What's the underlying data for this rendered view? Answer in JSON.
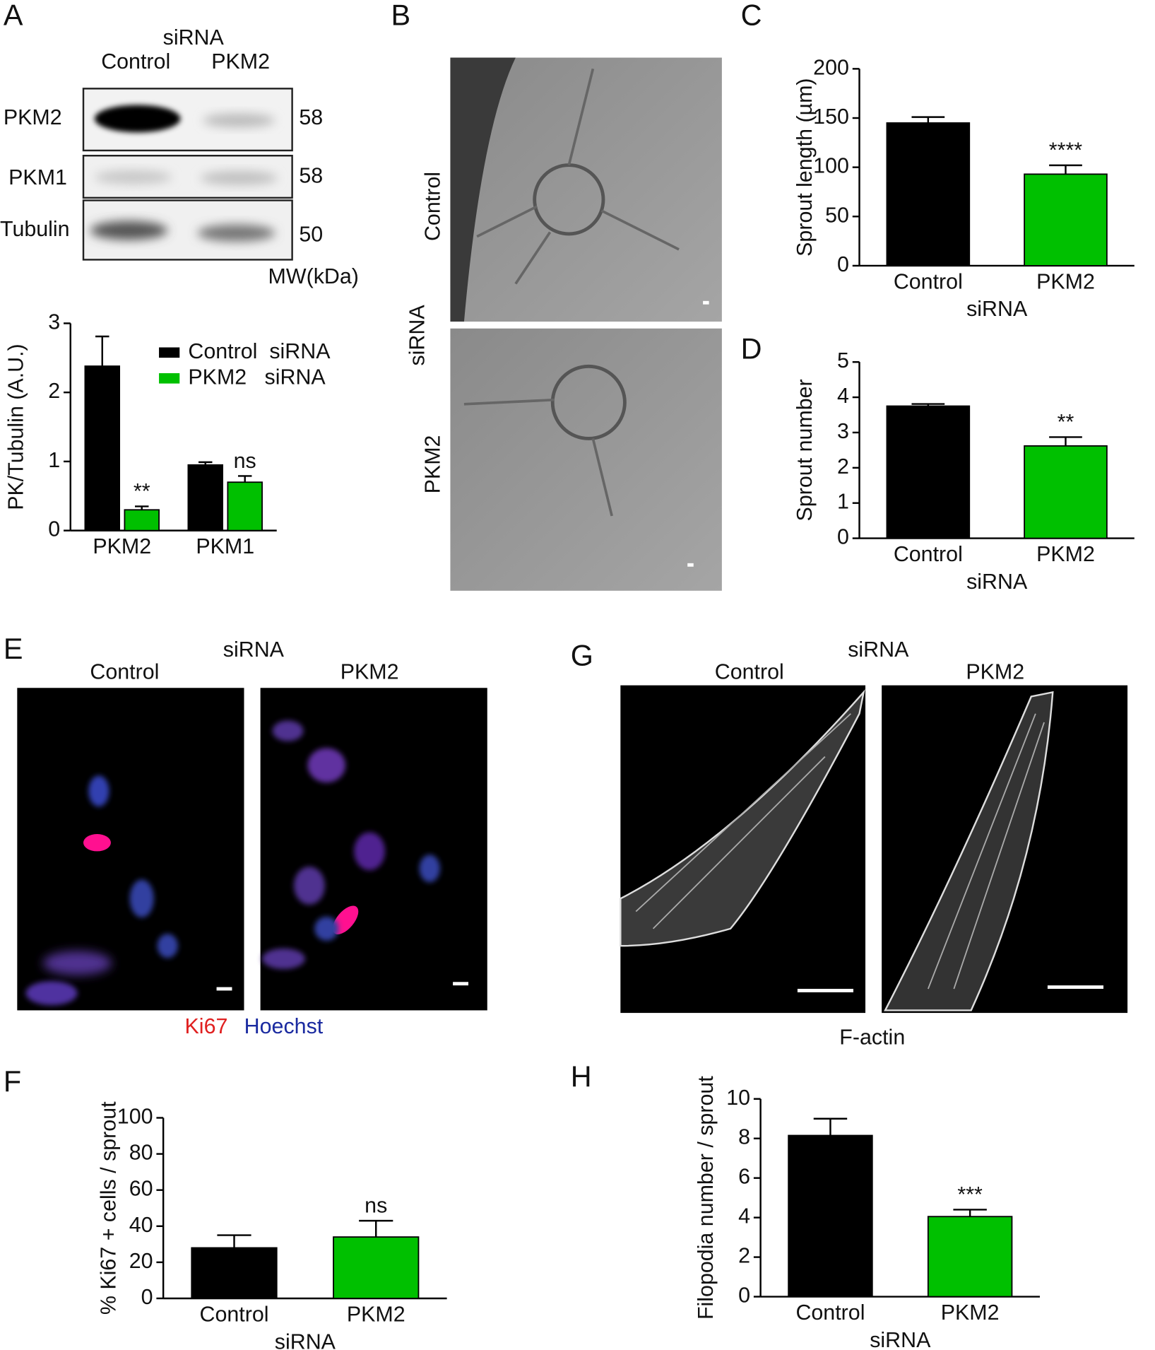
{
  "chart_data": [
    {
      "type": "bar",
      "ylabel": "PK/Tubulin (A.U.)",
      "categories": [
        "PKM2",
        "PKM1"
      ],
      "series": [
        {
          "name": "Control  siRNA",
          "color": "#000000",
          "values": [
            2.38,
            0.95
          ],
          "errors": [
            0.43,
            0.04
          ]
        },
        {
          "name": "PKM2   siRNA",
          "color": "#00c000",
          "values": [
            0.3,
            0.7
          ],
          "errors": [
            0.05,
            0.09
          ],
          "annotations": [
            "**",
            "ns"
          ]
        }
      ],
      "ylim": [
        0,
        3
      ],
      "yticks": [
        0,
        1,
        2,
        3
      ]
    },
    {
      "type": "bar",
      "ylabel": "Sprout length (µm)",
      "xlabel": "siRNA",
      "categories": [
        "Control",
        "PKM2"
      ],
      "values": [
        145,
        93
      ],
      "errors": [
        6,
        9
      ],
      "annotations": [
        null,
        "****"
      ],
      "colors": [
        "#000000",
        "#00c000"
      ],
      "ylim": [
        0,
        200
      ],
      "yticks": [
        0,
        50,
        100,
        150,
        200
      ]
    },
    {
      "type": "bar",
      "ylabel": "Sprout number",
      "xlabel": "siRNA",
      "categories": [
        "Control",
        "PKM2"
      ],
      "values": [
        3.75,
        2.62
      ],
      "errors": [
        0.06,
        0.25
      ],
      "annotations": [
        null,
        "**"
      ],
      "colors": [
        "#000000",
        "#00c000"
      ],
      "ylim": [
        0,
        5
      ],
      "yticks": [
        0,
        1,
        2,
        3,
        4,
        5
      ]
    },
    {
      "type": "bar",
      "ylabel": "% Ki67 + cells / sprout",
      "xlabel": "siRNA",
      "categories": [
        "Control",
        "PKM2"
      ],
      "values": [
        28,
        34
      ],
      "errors": [
        7,
        9
      ],
      "annotations": [
        null,
        "ns"
      ],
      "colors": [
        "#000000",
        "#00c000"
      ],
      "ylim": [
        0,
        100
      ],
      "yticks": [
        0,
        20,
        40,
        60,
        80,
        100
      ]
    },
    {
      "type": "bar",
      "ylabel": "Filopodia number / sprout",
      "xlabel": "siRNA",
      "categories": [
        "Control",
        "PKM2"
      ],
      "values": [
        8.15,
        4.05
      ],
      "errors": [
        0.85,
        0.35
      ],
      "annotations": [
        null,
        "***"
      ],
      "colors": [
        "#000000",
        "#00c000"
      ],
      "ylim": [
        0,
        10
      ],
      "yticks": [
        0,
        2,
        4,
        6,
        8,
        10
      ]
    }
  ],
  "figure": {
    "panel_labels": [
      "A",
      "B",
      "C",
      "D",
      "E",
      "F",
      "G",
      "H"
    ],
    "blot": {
      "header": "siRNA",
      "lanes": [
        "Control",
        "PKM2"
      ],
      "rows": [
        {
          "label": "PKM2",
          "mw": 58
        },
        {
          "label": "PKM1",
          "mw": 58
        },
        {
          "label": "Tubulin",
          "mw": 50
        }
      ],
      "mw_unit": "MW(kDa)"
    },
    "panel_b": {
      "rows": [
        "Control",
        "PKM2"
      ],
      "side": "siRNA"
    },
    "panel_e": {
      "header": "siRNA",
      "columns": [
        "Control",
        "PKM2"
      ],
      "stains": [
        "Ki67",
        "Hoechst"
      ]
    },
    "panel_g": {
      "header": "siRNA",
      "columns": [
        "Control",
        "PKM2"
      ],
      "caption": "F-actin"
    }
  }
}
